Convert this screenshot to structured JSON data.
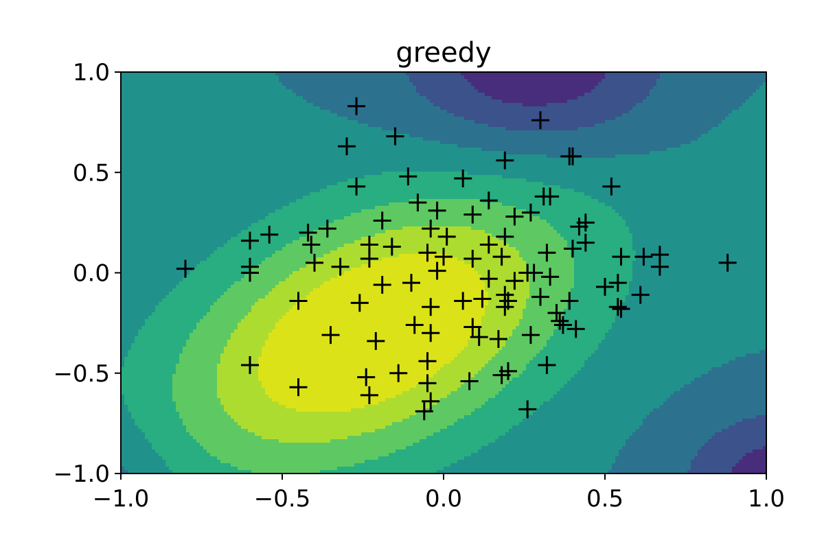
{
  "chart_data": {
    "type": "contour-scatter",
    "title": "greedy",
    "xlabel": "",
    "ylabel": "",
    "xlim": [
      -1.0,
      1.0
    ],
    "ylim": [
      -1.0,
      1.0
    ],
    "grid": false,
    "legend": "none",
    "x_ticks": [
      -1.0,
      -0.5,
      0.0,
      0.5,
      1.0
    ],
    "y_ticks": [
      -1.0,
      -0.5,
      0.0,
      0.5,
      1.0
    ],
    "x_tick_labels": [
      "−1.0",
      "−0.5",
      "0.0",
      "0.5",
      "1.0"
    ],
    "y_tick_labels": [
      "−1.0",
      "−0.5",
      "0.0",
      "0.5",
      "1.0"
    ],
    "colormap": "viridis",
    "contour_colors": [
      "#472d7b",
      "#3b528b",
      "#2c728e",
      "#21918c",
      "#28ae80",
      "#5ec962",
      "#addc30",
      "#dbe318"
    ],
    "marker": "plus",
    "marker_color": "#000000",
    "points": [
      [
        -0.27,
        0.83
      ],
      [
        -0.15,
        0.68
      ],
      [
        -0.3,
        0.63
      ],
      [
        -0.27,
        0.43
      ],
      [
        -0.11,
        0.48
      ],
      [
        -0.08,
        0.35
      ],
      [
        -0.02,
        0.31
      ],
      [
        -0.19,
        0.26
      ],
      [
        -0.36,
        0.22
      ],
      [
        -0.42,
        0.2
      ],
      [
        -0.54,
        0.19
      ],
      [
        -0.6,
        0.16
      ],
      [
        -0.41,
        0.14
      ],
      [
        -0.23,
        0.14
      ],
      [
        -0.16,
        0.13
      ],
      [
        -0.04,
        0.22
      ],
      [
        0.01,
        0.18
      ],
      [
        -0.8,
        0.02
      ],
      [
        -0.6,
        0.03
      ],
      [
        -0.6,
        0.0
      ],
      [
        -0.4,
        0.05
      ],
      [
        -0.32,
        0.03
      ],
      [
        -0.23,
        0.07
      ],
      [
        -0.05,
        0.1
      ],
      [
        0.0,
        0.08
      ],
      [
        -0.02,
        0.01
      ],
      [
        -0.1,
        -0.05
      ],
      [
        -0.19,
        -0.06
      ],
      [
        -0.45,
        -0.14
      ],
      [
        -0.26,
        -0.15
      ],
      [
        -0.04,
        -0.17
      ],
      [
        0.06,
        -0.14
      ],
      [
        -0.09,
        -0.26
      ],
      [
        -0.04,
        -0.3
      ],
      [
        -0.35,
        -0.31
      ],
      [
        -0.21,
        -0.34
      ],
      [
        -0.05,
        -0.44
      ],
      [
        -0.6,
        -0.46
      ],
      [
        -0.45,
        -0.57
      ],
      [
        -0.24,
        -0.52
      ],
      [
        -0.14,
        -0.5
      ],
      [
        -0.05,
        -0.55
      ],
      [
        -0.04,
        -0.64
      ],
      [
        -0.06,
        -0.69
      ],
      [
        -0.23,
        -0.61
      ],
      [
        0.06,
        0.47
      ],
      [
        0.09,
        0.29
      ],
      [
        0.14,
        0.36
      ],
      [
        0.19,
        0.56
      ],
      [
        0.3,
        0.76
      ],
      [
        0.39,
        0.58
      ],
      [
        0.4,
        0.58
      ],
      [
        0.31,
        0.38
      ],
      [
        0.33,
        0.38
      ],
      [
        0.27,
        0.3
      ],
      [
        0.22,
        0.28
      ],
      [
        0.42,
        0.23
      ],
      [
        0.44,
        0.25
      ],
      [
        0.52,
        0.43
      ],
      [
        0.19,
        0.18
      ],
      [
        0.14,
        0.14
      ],
      [
        0.09,
        0.07
      ],
      [
        0.18,
        0.08
      ],
      [
        0.32,
        0.1
      ],
      [
        0.4,
        0.12
      ],
      [
        0.44,
        0.15
      ],
      [
        0.55,
        0.08
      ],
      [
        0.62,
        0.08
      ],
      [
        0.67,
        0.09
      ],
      [
        0.67,
        0.03
      ],
      [
        0.88,
        0.05
      ],
      [
        0.26,
        0.0
      ],
      [
        0.28,
        0.0
      ],
      [
        0.33,
        -0.02
      ],
      [
        0.22,
        -0.04
      ],
      [
        0.14,
        -0.03
      ],
      [
        0.12,
        -0.13
      ],
      [
        0.19,
        -0.11
      ],
      [
        0.19,
        -0.17
      ],
      [
        0.3,
        -0.12
      ],
      [
        0.35,
        -0.2
      ],
      [
        0.36,
        -0.24
      ],
      [
        0.41,
        -0.28
      ],
      [
        0.39,
        -0.14
      ],
      [
        0.5,
        -0.07
      ],
      [
        0.54,
        -0.17
      ],
      [
        0.55,
        -0.18
      ],
      [
        0.54,
        -0.05
      ],
      [
        0.61,
        -0.11
      ],
      [
        0.27,
        -0.31
      ],
      [
        0.09,
        -0.27
      ],
      [
        0.11,
        -0.32
      ],
      [
        0.17,
        -0.33
      ],
      [
        0.08,
        -0.54
      ],
      [
        0.18,
        -0.51
      ],
      [
        0.2,
        -0.49
      ],
      [
        0.32,
        -0.46
      ],
      [
        0.26,
        -0.68
      ],
      [
        0.2,
        -0.14
      ],
      [
        0.37,
        -0.26
      ]
    ]
  }
}
